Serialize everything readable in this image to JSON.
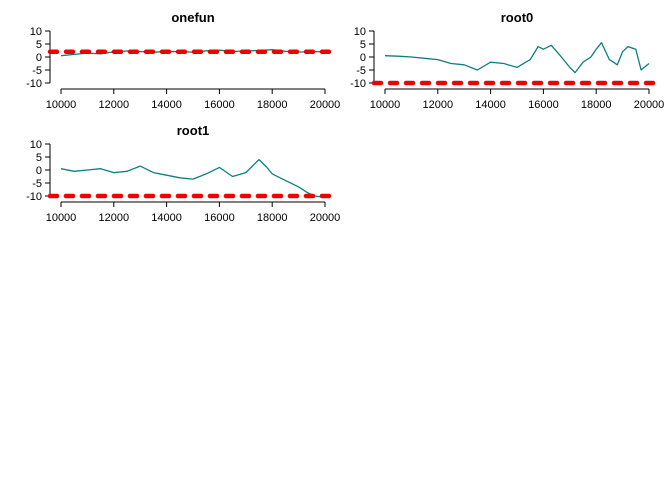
{
  "colors": {
    "series": "#0e7f7f",
    "reference": "#ee0000",
    "axis": "#000000",
    "background": "#ffffff"
  },
  "chart_data": [
    {
      "type": "line",
      "title": "onefun",
      "xlabel": "",
      "ylabel": "",
      "xlim": [
        10000,
        20000
      ],
      "ylim": [
        -10,
        10
      ],
      "xticks": [
        10000,
        12000,
        14000,
        16000,
        18000,
        20000
      ],
      "yticks": [
        -10,
        -5,
        0,
        5,
        10
      ],
      "grid": false,
      "reference_line": {
        "y": 2,
        "style": "dashed"
      },
      "series": [
        {
          "x": [
            10000,
            10500,
            11000,
            11500,
            12000,
            12500,
            13000,
            13500,
            14000,
            14500,
            15000,
            15500,
            16000,
            16500,
            17000,
            17500,
            18000,
            18500,
            19000,
            19500,
            20000
          ],
          "values": [
            0.5,
            1.0,
            1.5,
            1.2,
            2.0,
            2.3,
            2.1,
            1.8,
            2.2,
            2.0,
            1.9,
            2.4,
            2.6,
            2.1,
            2.3,
            2.5,
            2.8,
            2.2,
            1.9,
            2.1,
            2.0
          ]
        }
      ]
    },
    {
      "type": "line",
      "title": "root0",
      "xlabel": "",
      "ylabel": "",
      "xlim": [
        10000,
        20000
      ],
      "ylim": [
        -10,
        10
      ],
      "xticks": [
        10000,
        12000,
        14000,
        16000,
        18000,
        20000
      ],
      "yticks": [
        -10,
        -5,
        0,
        5,
        10
      ],
      "grid": false,
      "reference_line": {
        "y": -10,
        "style": "dashed"
      },
      "series": [
        {
          "x": [
            10000,
            10500,
            11000,
            11500,
            12000,
            12500,
            13000,
            13500,
            14000,
            14500,
            15000,
            15500,
            15800,
            16000,
            16300,
            16600,
            17000,
            17200,
            17500,
            17800,
            18000,
            18200,
            18500,
            18800,
            19000,
            19200,
            19500,
            19700,
            20000
          ],
          "values": [
            0.5,
            0.3,
            0.0,
            -0.5,
            -1.0,
            -2.5,
            -3.0,
            -5.0,
            -2.0,
            -2.5,
            -4.0,
            -1.0,
            4.0,
            3.0,
            4.5,
            1.0,
            -4.0,
            -6.0,
            -2.0,
            0.0,
            3.0,
            5.5,
            -1.0,
            -3.0,
            2.0,
            4.0,
            3.0,
            -5.0,
            -2.5
          ]
        }
      ]
    },
    {
      "type": "line",
      "title": "root1",
      "xlabel": "",
      "ylabel": "",
      "xlim": [
        10000,
        20000
      ],
      "ylim": [
        -10,
        10
      ],
      "xticks": [
        10000,
        12000,
        14000,
        16000,
        18000,
        20000
      ],
      "yticks": [
        -10,
        -5,
        0,
        5,
        10
      ],
      "grid": false,
      "reference_line": {
        "y": -10,
        "style": "dashed"
      },
      "series": [
        {
          "x": [
            10000,
            10500,
            11000,
            11500,
            12000,
            12500,
            13000,
            13500,
            14000,
            14500,
            15000,
            15500,
            16000,
            16500,
            17000,
            17500,
            17800,
            18000,
            18500,
            19000,
            19300,
            19600,
            20000
          ],
          "values": [
            0.5,
            -0.5,
            0.0,
            0.5,
            -1.0,
            -0.5,
            1.5,
            -1.0,
            -2.0,
            -3.0,
            -3.5,
            -1.5,
            1.0,
            -2.5,
            -1.0,
            4.0,
            1.0,
            -1.5,
            -4.0,
            -6.5,
            -8.5,
            -10.0,
            -10.5
          ]
        }
      ]
    }
  ]
}
